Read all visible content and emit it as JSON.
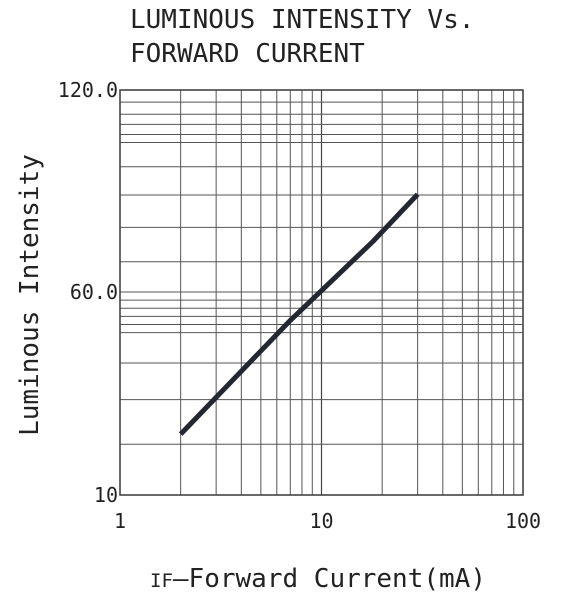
{
  "chart_data": {
    "type": "line",
    "title_lines": [
      "LUMINOUS INTENSITY Vs.",
      "FORWARD CURRENT"
    ],
    "xlabel_prefix": "IF",
    "xlabel_rest": "—Forward Current(mA)",
    "ylabel": "Luminous Intensity",
    "x_scale": "log",
    "xlim": [
      1,
      100
    ],
    "ylim": [
      10,
      120
    ],
    "x_ticks": [
      {
        "value": 1,
        "label": "1"
      },
      {
        "value": 10,
        "label": "10"
      },
      {
        "value": 100,
        "label": "100"
      }
    ],
    "y_ticks": [
      {
        "value": 120,
        "label": "120.0"
      },
      {
        "value": 60,
        "label": "60.0"
      },
      {
        "value": 10,
        "label": "10"
      }
    ],
    "grid": true,
    "series": [
      {
        "color": "#232730",
        "x": [
          2,
          7,
          18,
          30
        ],
        "y": [
          25,
          53,
          75,
          89
        ]
      }
    ]
  }
}
